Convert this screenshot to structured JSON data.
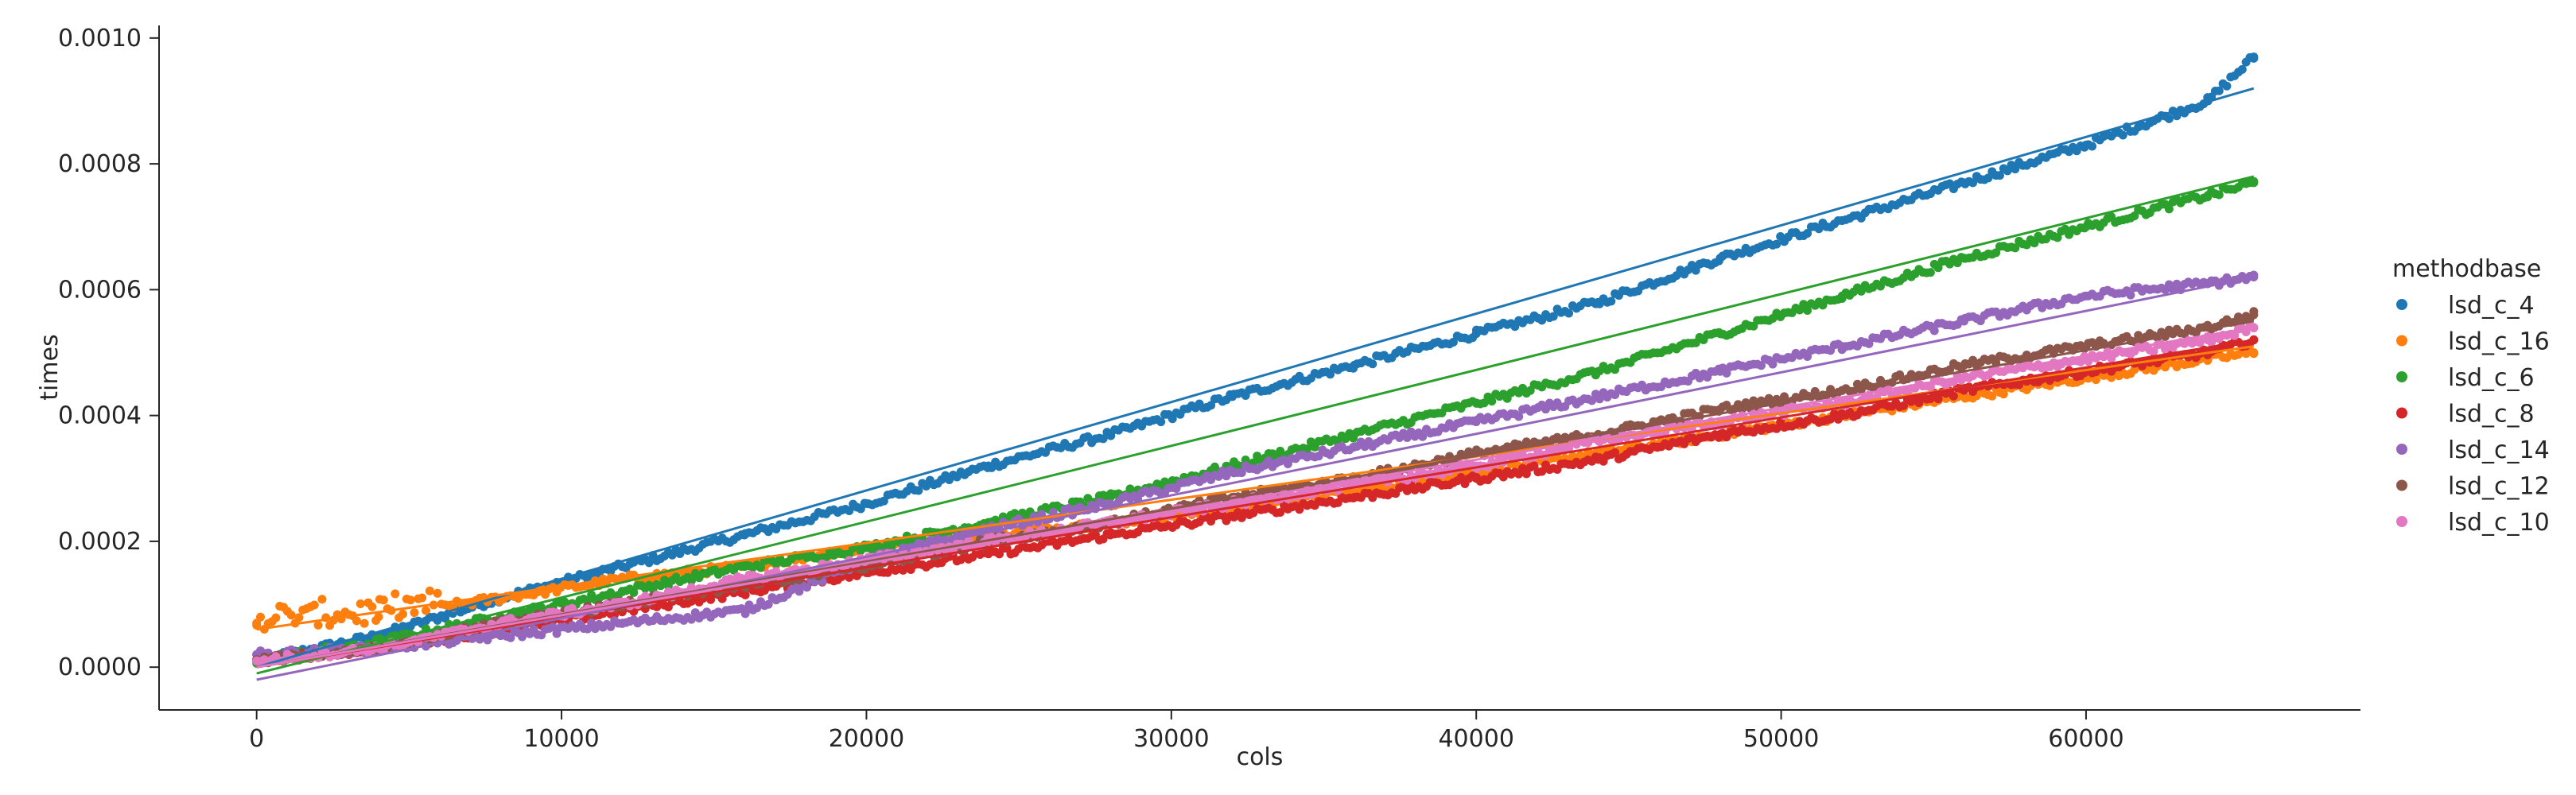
{
  "chart_data": {
    "type": "scatter",
    "xlabel": "cols",
    "ylabel": "times",
    "xlim": [
      -3200,
      69000
    ],
    "ylim": [
      -6.8e-05,
      0.00102
    ],
    "xticks": [
      0,
      10000,
      20000,
      30000,
      40000,
      50000,
      60000
    ],
    "xtick_labels": [
      "0",
      "10000",
      "20000",
      "30000",
      "40000",
      "50000",
      "60000"
    ],
    "yticks": [
      0.0,
      0.0002,
      0.0004,
      0.0006,
      0.0008,
      0.001
    ],
    "ytick_labels": [
      "0.0000",
      "0.0002",
      "0.0004",
      "0.0006",
      "0.0008",
      "0.0010"
    ],
    "legend_title": "methodbase",
    "legend_position": "right",
    "regression_lines": true,
    "series": [
      {
        "name": "lsd_c_4",
        "color": "#1f77b4",
        "x": [
          0,
          4000,
          8000,
          12000,
          16000,
          20000,
          24000,
          28000,
          32000,
          36000,
          40000,
          44000,
          48000,
          52000,
          56000,
          60000,
          64000,
          65500
        ],
        "y": [
          1e-05,
          5e-05,
          0.00011,
          0.00016,
          0.00021,
          0.00026,
          0.00032,
          0.00037,
          0.00043,
          0.00048,
          0.00053,
          0.00058,
          0.00065,
          0.00071,
          0.00077,
          0.00083,
          0.0009,
          0.00097
        ],
        "line": [
          0.0,
          0.00092
        ]
      },
      {
        "name": "lsd_c_16",
        "color": "#ff7f0e",
        "x": [
          0,
          4000,
          8000,
          12000,
          16000,
          20000,
          24000,
          28000,
          32000,
          36000,
          40000,
          44000,
          48000,
          52000,
          56000,
          60000,
          64000,
          65500
        ],
        "y": [
          7e-05,
          8e-05,
          0.00011,
          0.00014,
          0.00016,
          0.00019,
          0.00021,
          0.00023,
          0.00025,
          0.00028,
          0.00031,
          0.00034,
          0.00037,
          0.0004,
          0.00043,
          0.00046,
          0.00049,
          0.0005
        ],
        "line": [
          6e-05,
          0.00051
        ]
      },
      {
        "name": "lsd_c_6",
        "color": "#2ca02c",
        "x": [
          0,
          4000,
          8000,
          12000,
          16000,
          20000,
          24000,
          28000,
          32000,
          36000,
          40000,
          44000,
          48000,
          52000,
          56000,
          60000,
          64000,
          65500
        ],
        "y": [
          1e-05,
          4e-05,
          8e-05,
          0.00012,
          0.00016,
          0.00019,
          0.00023,
          0.00027,
          0.00032,
          0.00037,
          0.00042,
          0.00047,
          0.00053,
          0.00059,
          0.00065,
          0.0007,
          0.00075,
          0.00077
        ],
        "line": [
          -1e-05,
          0.00078
        ]
      },
      {
        "name": "lsd_c_8",
        "color": "#d62728",
        "x": [
          0,
          4000,
          8000,
          12000,
          16000,
          20000,
          24000,
          28000,
          32000,
          36000,
          40000,
          44000,
          48000,
          52000,
          56000,
          60000,
          64000,
          65500
        ],
        "y": [
          1e-05,
          3e-05,
          6e-05,
          9e-05,
          0.00012,
          0.00015,
          0.00018,
          0.00021,
          0.00024,
          0.00027,
          0.0003,
          0.00033,
          0.00037,
          0.0004,
          0.00044,
          0.00047,
          0.0005,
          0.00052
        ],
        "line": [
          0.0,
          0.00052
        ]
      },
      {
        "name": "lsd_c_14",
        "color": "#9467bd",
        "x": [
          0,
          4000,
          8000,
          12000,
          16000,
          20000,
          24000,
          28000,
          32000,
          36000,
          40000,
          44000,
          48000,
          52000,
          56000,
          60000,
          64000,
          65500
        ],
        "y": [
          2e-05,
          3e-05,
          5e-05,
          7e-05,
          9e-05,
          0.00017,
          0.00022,
          0.00026,
          0.00031,
          0.00035,
          0.00039,
          0.00043,
          0.00047,
          0.00051,
          0.00055,
          0.00059,
          0.00061,
          0.00062
        ],
        "line": [
          -2e-05,
          0.00062
        ]
      },
      {
        "name": "lsd_c_12",
        "color": "#8c564b",
        "x": [
          0,
          4000,
          8000,
          12000,
          16000,
          20000,
          24000,
          28000,
          32000,
          36000,
          40000,
          44000,
          48000,
          52000,
          56000,
          60000,
          64000,
          65500
        ],
        "y": [
          1e-05,
          3e-05,
          7e-05,
          0.0001,
          0.00013,
          0.00016,
          0.0002,
          0.00023,
          0.00027,
          0.0003,
          0.00034,
          0.00037,
          0.00041,
          0.00044,
          0.00048,
          0.00051,
          0.00054,
          0.00056
        ],
        "line": [
          0.0,
          0.00055
        ]
      },
      {
        "name": "lsd_c_10",
        "color": "#e377c2",
        "x": [
          0,
          4000,
          8000,
          12000,
          16000,
          20000,
          24000,
          28000,
          32000,
          36000,
          40000,
          44000,
          48000,
          52000,
          56000,
          60000,
          64000,
          65500
        ],
        "y": [
          1e-05,
          3e-05,
          7e-05,
          0.0001,
          0.00014,
          0.00017,
          0.0002,
          0.00023,
          0.00026,
          0.00029,
          0.00032,
          0.00036,
          0.00039,
          0.00042,
          0.00046,
          0.00049,
          0.00052,
          0.00054
        ],
        "line": [
          0.0,
          0.00054
        ]
      }
    ]
  }
}
